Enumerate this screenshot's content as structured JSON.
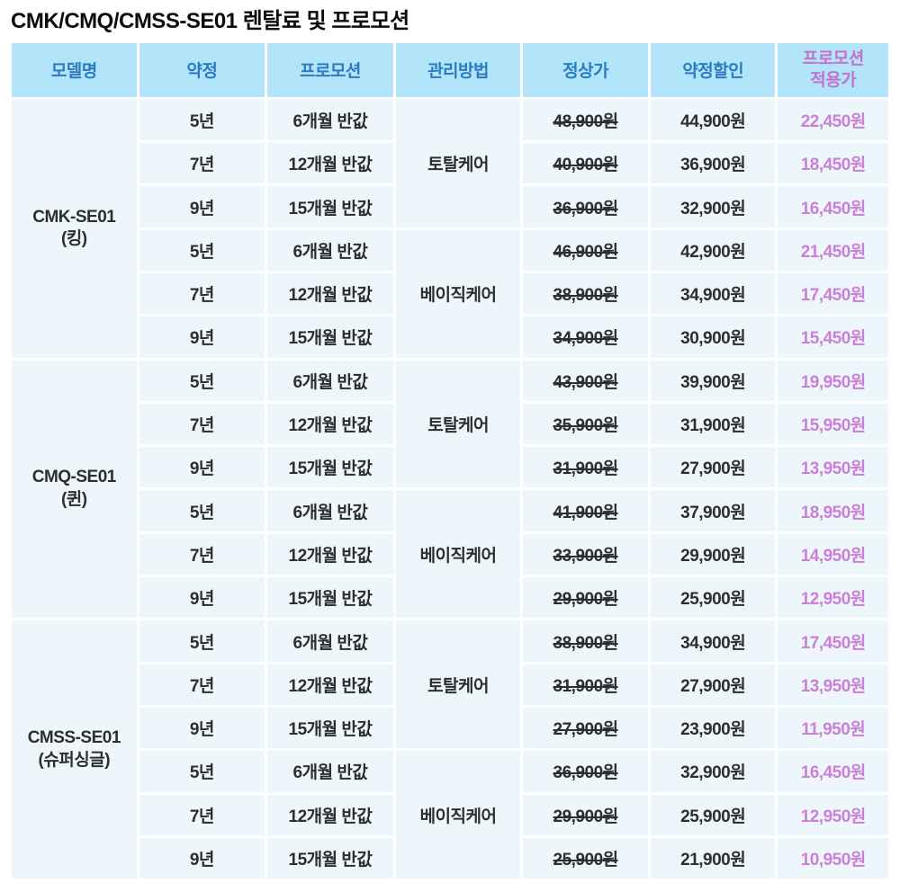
{
  "title": "CMK/CMQ/CMSS-SE01 렌탈료 및 프로모션",
  "colors": {
    "header_bg": "#b2e4fa",
    "header_text_blue": "#2a7cbf",
    "header_text_pink": "#c173ce",
    "cell_bg": "#edf6fb",
    "body_text": "#2e2e2e",
    "promo_price_text": "#cb80d6",
    "grid_gap": "#ffffff"
  },
  "table": {
    "headers": [
      "모델명",
      "약정",
      "프로모션",
      "관리방법",
      "정상가",
      "약정할인",
      "프로모션\n적용가"
    ],
    "groups": [
      {
        "model": "CMK-SE01\n(킹)",
        "care_groups": [
          {
            "care": "토탈케어",
            "rows": [
              {
                "term": "5년",
                "promo": "6개월 반값",
                "normal": "48,900원",
                "discount": "44,900원",
                "promo_price": "22,450원"
              },
              {
                "term": "7년",
                "promo": "12개월 반값",
                "normal": "40,900원",
                "discount": "36,900원",
                "promo_price": "18,450원"
              },
              {
                "term": "9년",
                "promo": "15개월 반값",
                "normal": "36,900원",
                "discount": "32,900원",
                "promo_price": "16,450원"
              }
            ]
          },
          {
            "care": "베이직케어",
            "rows": [
              {
                "term": "5년",
                "promo": "6개월 반값",
                "normal": "46,900원",
                "discount": "42,900원",
                "promo_price": "21,450원"
              },
              {
                "term": "7년",
                "promo": "12개월 반값",
                "normal": "38,900원",
                "discount": "34,900원",
                "promo_price": "17,450원"
              },
              {
                "term": "9년",
                "promo": "15개월 반값",
                "normal": "34,900원",
                "discount": "30,900원",
                "promo_price": "15,450원"
              }
            ]
          }
        ]
      },
      {
        "model": "CMQ-SE01\n(퀸)",
        "care_groups": [
          {
            "care": "토탈케어",
            "rows": [
              {
                "term": "5년",
                "promo": "6개월 반값",
                "normal": "43,900원",
                "discount": "39,900원",
                "promo_price": "19,950원"
              },
              {
                "term": "7년",
                "promo": "12개월 반값",
                "normal": "35,900원",
                "discount": "31,900원",
                "promo_price": "15,950원"
              },
              {
                "term": "9년",
                "promo": "15개월 반값",
                "normal": "31,900원",
                "discount": "27,900원",
                "promo_price": "13,950원"
              }
            ]
          },
          {
            "care": "베이직케어",
            "rows": [
              {
                "term": "5년",
                "promo": "6개월 반값",
                "normal": "41,900원",
                "discount": "37,900원",
                "promo_price": "18,950원"
              },
              {
                "term": "7년",
                "promo": "12개월 반값",
                "normal": "33,900원",
                "discount": "29,900원",
                "promo_price": "14,950원"
              },
              {
                "term": "9년",
                "promo": "15개월 반값",
                "normal": "29,900원",
                "discount": "25,900원",
                "promo_price": "12,950원"
              }
            ]
          }
        ]
      },
      {
        "model": "CMSS-SE01\n(슈퍼싱글)",
        "care_groups": [
          {
            "care": "토탈케어",
            "rows": [
              {
                "term": "5년",
                "promo": "6개월 반값",
                "normal": "38,900원",
                "discount": "34,900원",
                "promo_price": "17,450원"
              },
              {
                "term": "7년",
                "promo": "12개월 반값",
                "normal": "31,900원",
                "discount": "27,900원",
                "promo_price": "13,950원"
              },
              {
                "term": "9년",
                "promo": "15개월 반값",
                "normal": "27,900원",
                "discount": "23,900원",
                "promo_price": "11,950원"
              }
            ]
          },
          {
            "care": "베이직케어",
            "rows": [
              {
                "term": "5년",
                "promo": "6개월 반값",
                "normal": "36,900원",
                "discount": "32,900원",
                "promo_price": "16,450원"
              },
              {
                "term": "7년",
                "promo": "12개월 반값",
                "normal": "29,900원",
                "discount": "25,900원",
                "promo_price": "12,950원"
              },
              {
                "term": "9년",
                "promo": "15개월 반값",
                "normal": "25,900원",
                "discount": "21,900원",
                "promo_price": "10,950원"
              }
            ]
          }
        ]
      }
    ]
  }
}
